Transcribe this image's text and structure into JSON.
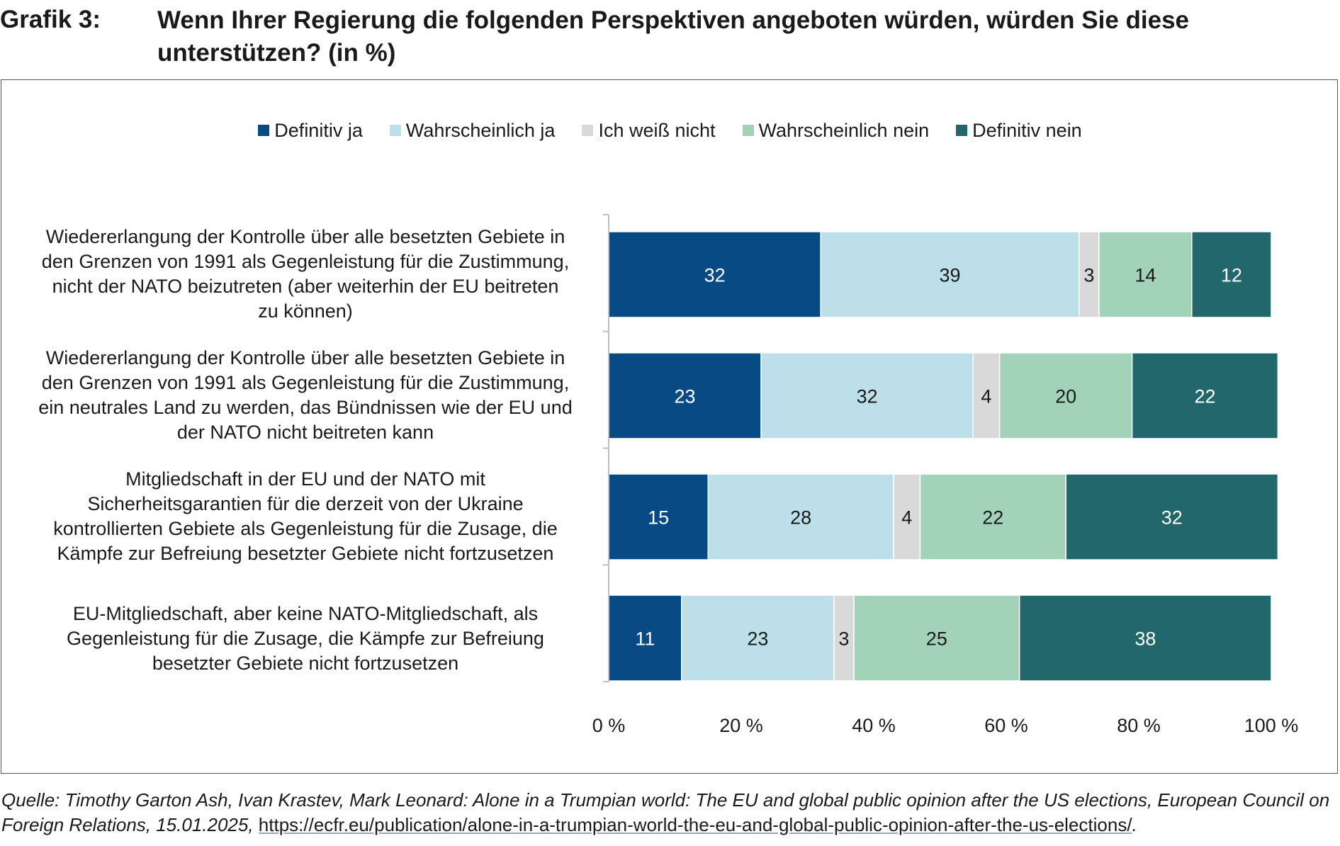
{
  "header": {
    "label": "Grafik 3:",
    "title_line1": "Wenn Ihrer Regierung die folgenden Perspektiven angeboten würden, würden Sie diese",
    "title_line2": "unterstützen? (in %)"
  },
  "chart_data": {
    "type": "bar",
    "orientation": "horizontal",
    "stacked": true,
    "title": "Wenn Ihrer Regierung die folgenden Perspektiven angeboten würden, würden Sie diese unterstützen? (in %)",
    "xlabel": "",
    "ylabel": "",
    "xlim": [
      0,
      100
    ],
    "x_ticks": [
      "0 %",
      "20 %",
      "40 %",
      "60 %",
      "80 %",
      "100 %"
    ],
    "grid": false,
    "legend_position": "top",
    "categories": [
      {
        "lines": [
          "Wiedererlangung der Kontrolle über alle besetzten Gebiete in",
          "den Grenzen von 1991 als Gegenleistung für die Zustimmung,",
          "nicht der NATO beizutreten (aber weiterhin der EU beitreten",
          "zu können)"
        ]
      },
      {
        "lines": [
          "Wiedererlangung der Kontrolle über alle besetzten Gebiete in",
          "den Grenzen von 1991 als Gegenleistung für die Zustimmung,",
          "ein neutrales Land zu werden, das Bündnissen wie der EU und",
          "der NATO nicht beitreten kann"
        ]
      },
      {
        "lines": [
          "Mitgliedschaft in der EU und der NATO mit",
          "Sicherheitsgarantien für die derzeit von der Ukraine",
          "kontrollierten Gebiete als Gegenleistung für die Zusage, die",
          "Kämpfe zur Befreiung besetzter Gebiete nicht fortzusetzen"
        ]
      },
      {
        "lines": [
          "EU-Mitgliedschaft, aber keine NATO-Mitgliedschaft, als",
          "Gegenleistung für die Zusage, die Kämpfe zur Befreiung",
          "besetzter Gebiete nicht fortzusetzen"
        ]
      }
    ],
    "series": [
      {
        "name": "Definitiv ja",
        "color": "#084a83",
        "label_color": "#ffffff",
        "values": [
          32,
          23,
          15,
          11
        ]
      },
      {
        "name": "Wahrscheinlich ja",
        "color": "#bcdfea",
        "label_color": "#1a1a1a",
        "values": [
          39,
          32,
          28,
          23
        ]
      },
      {
        "name": "Ich weiß nicht",
        "color": "#d9d9d9",
        "label_color": "#1a1a1a",
        "values": [
          3,
          4,
          4,
          3
        ]
      },
      {
        "name": "Wahrscheinlich nein",
        "color": "#a2d3b9",
        "label_color": "#1a1a1a",
        "values": [
          14,
          20,
          22,
          25
        ]
      },
      {
        "name": "Definitiv nein",
        "color": "#21676b",
        "label_color": "#ffffff",
        "values": [
          12,
          22,
          32,
          38
        ]
      }
    ]
  },
  "source": {
    "text": "Quelle: Timothy Garton Ash, Ivan Krastev, Mark Leonard: Alone in a Trumpian world: The EU and global public opinion after the US elections, European Coun­cil on Foreign Relations, 15.01.2025, ",
    "link": "https://ecfr.eu/publication/alone-in-a-trumpian-world-the-eu-and-global-public-opinion-after-the-us-elections/",
    "tail": "."
  }
}
